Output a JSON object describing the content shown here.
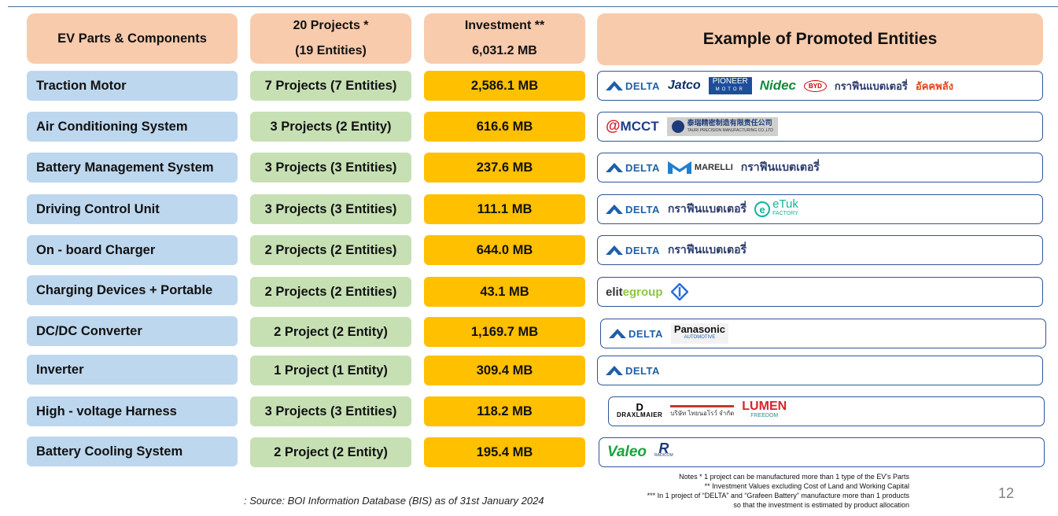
{
  "header": {
    "col1": "EV Parts & Components",
    "col2_line1": "20 Projects *",
    "col2_line2": "(19 Entities)",
    "col3_line1": "Investment **",
    "col3_line2": "6,031.2 MB",
    "col4": "Example of Promoted Entities"
  },
  "rows": [
    {
      "part": "Traction Motor",
      "projects": "7 Projects (7 Entities)",
      "investment": "2,586.1 MB",
      "logos": [
        "DELTA",
        "Jatco",
        "PIONEER",
        "Nidec",
        "BYD",
        "กราฟีนแบตเตอรี่",
        "อัคคพลัง"
      ]
    },
    {
      "part": "Air Conditioning System",
      "projects": "3 Projects (2 Entity)",
      "investment": "616.6 MB",
      "logos": [
        "MCCT",
        "泰瑞精密制造有限责任公司"
      ]
    },
    {
      "part": "Battery Management System",
      "projects": "3 Projects (3 Entities)",
      "investment": "237.6 MB",
      "logos": [
        "DELTA",
        "MARELLI",
        "กราฟีนแบตเตอรี่"
      ]
    },
    {
      "part": "Driving Control Unit",
      "projects": "3 Projects (3 Entities)",
      "investment": "111.1 MB",
      "logos": [
        "DELTA",
        "กราฟีนแบตเตอรี่",
        "eTuk"
      ]
    },
    {
      "part": "On - board Charger",
      "projects": "2 Projects (2 Entities)",
      "investment": "644.0 MB",
      "logos": [
        "DELTA",
        "กราฟีนแบตเตอรี่"
      ]
    },
    {
      "part": "Charging Devices + Portable",
      "projects": "2 Projects (2 Entities)",
      "investment": "43.1 MB",
      "logos": [
        "elitegroup"
      ]
    },
    {
      "part": "DC/DC Converter",
      "projects": "2 Project (2 Entity)",
      "investment": "1,169.7 MB",
      "logos": [
        "DELTA",
        "Panasonic"
      ]
    },
    {
      "part": "Inverter",
      "projects": "1 Project (1 Entity)",
      "investment": "309.4 MB",
      "logos": [
        "DELTA"
      ]
    },
    {
      "part": "High - voltage Harness",
      "projects": "3 Projects (3 Entities)",
      "investment": "118.2 MB",
      "logos": [
        "DRAXLMAIER",
        "บริษัท ไทยนอโรว์ จำกัด",
        "LUMEN"
      ]
    },
    {
      "part": "Battery Cooling System",
      "projects": "2 Project (2 Entity)",
      "investment": "195.4 MB",
      "logos": [
        "Valeo"
      ]
    }
  ],
  "logo_text": {
    "delta": "DELTA",
    "jatco": "Jatco",
    "pioneer": "PIONEER",
    "pioneer_sub": "MOTOR",
    "nidec": "Nidec",
    "byd": "BYD",
    "grafeen": "กราฟีนแบตเตอรี่",
    "akkapalang": "อัคคพลัง",
    "mcct": "MCCT",
    "tauri": "泰瑞精密制造有限责任公司",
    "tauri_sub": "TAURI PRECISION MANUFACTURING CO.,LTD",
    "marelli": "MARELLI",
    "etuk": "eTuk",
    "etuk_sub": "FACTORY",
    "elite": "elitegroup",
    "panasonic": "Panasonic",
    "panasonic_sub": "AUTOMOTIVE",
    "draxl": "DRAXLMAIER",
    "thainarrow": "บริษัท ไทยนอโรว์ จำกัด",
    "lumen": "LUMEN",
    "lumen_sub": "FREEDOM",
    "valeo": "Valeo",
    "radicom": "RADICOM"
  },
  "notes": [
    "Notes * 1 project can be manufactured more than 1 type of the EV's Parts",
    "** Investment Values excluding Cost of Land and Working Capital",
    "*** In 1 project of “DELTA” and “Grafeen Battery” manufacture more than 1 products",
    "so that the investment is estimated by product allocation"
  ],
  "source": ": Source: BOI Information Database (BIS) as of 31st January 2024",
  "page_number": "12",
  "colors": {
    "header": "#f8cbad",
    "parts": "#bdd7ee",
    "projects": "#c6e0b4",
    "investment": "#ffc000",
    "logo_border": "#2f5597"
  }
}
